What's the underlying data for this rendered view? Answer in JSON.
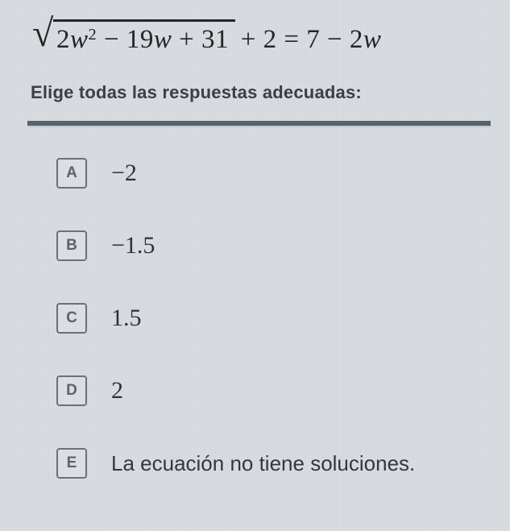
{
  "equation": {
    "radicand_html": "2<i>w</i><sup>2</sup> − 19<i>w</i> + 31",
    "rest_html": " + 2 = 7 − 2<i>w</i>"
  },
  "instruction": "Elige todas las respuestas adecuadas:",
  "colors": {
    "background": "#d8dbe0",
    "text": "#2a2c30",
    "divider": "#54636f",
    "box_border": "#6a7178"
  },
  "options": [
    {
      "letter": "A",
      "label": "−2",
      "is_words": false
    },
    {
      "letter": "B",
      "label": "−1.5",
      "is_words": false
    },
    {
      "letter": "C",
      "label": "1.5",
      "is_words": false
    },
    {
      "letter": "D",
      "label": "2",
      "is_words": false
    },
    {
      "letter": "E",
      "label": "La ecuación no tiene soluciones.",
      "is_words": true
    }
  ]
}
